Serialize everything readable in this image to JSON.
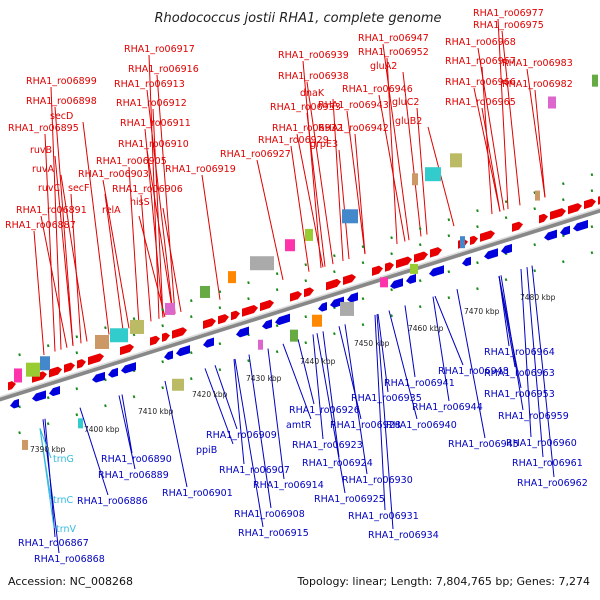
{
  "title": "Rhodococcus jostii RHA1, complete genome",
  "footer": {
    "accession": "Accession: NC_008268",
    "summary": "Topology: linear; Length: 7,804,765 bp; Genes: 7,274"
  },
  "colors": {
    "forward_label": "#e00000",
    "reverse_label": "#0000c0",
    "rna_label": "#33bbdd",
    "forward_gene": "#e80000",
    "reverse_gene": "#0000dd",
    "backbone": "#888888"
  },
  "scale_ticks": [
    "7390 kbp",
    "7400 kbp",
    "7410 kbp",
    "7420 kbp",
    "7430 kbp",
    "7440 kbp",
    "7450 kbp",
    "7460 kbp",
    "7470 kbp",
    "7480 kbp"
  ],
  "top_labels": [
    "RHA1_ro06977",
    "RHA1_ro06975",
    "RHA1_ro06968",
    "RHA1_ro06967",
    "RHA1_ro06983",
    "RHA1_ro06966",
    "RHA1_ro06982",
    "RHA1_ro06965",
    "RHA1_ro06947",
    "RHA1_ro06952",
    "gluA2",
    "RHA1_ro06946",
    "gluC2",
    "RHA1_ro06943",
    "gluB2",
    "RHA1_ro06942",
    "RHA1_ro06939",
    "RHA1_ro06938",
    "dnaK",
    "RHA1_ro06933",
    "RHA1_ro06932",
    "grpE3",
    "RHA1_ro06929",
    "RHA1_ro06927",
    "RHA1_ro06917",
    "RHA1_ro06916",
    "RHA1_ro06913",
    "RHA1_ro06912",
    "RHA1_ro06911",
    "RHA1_ro06910",
    "RHA1_ro06905",
    "RHA1_ro06919",
    "RHA1_ro06903",
    "RHA1_ro06906",
    "hisS",
    "relA",
    "RHA1_ro06899",
    "RHA1_ro06898",
    "secD",
    "RHA1_ro06895",
    "ruvB",
    "ruvA",
    "ruvC",
    "secF",
    "RHA1_ro06891",
    "RHA1_ro06887"
  ],
  "bottom_labels": [
    "RHA1_ro06964",
    "RHA1_ro06963",
    "RHA1_ro06953",
    "RHA1_ro06948",
    "RHA1_ro06941",
    "RHA1_ro06944",
    "RHA1_ro06959",
    "RHA1_ro06940",
    "RHA1_ro06935",
    "RHA1_ro06926",
    "RHA1_ro06928",
    "RHA1_ro06945",
    "RHA1_ro06960",
    "RHA1_ro06961",
    "RHA1_ro06962",
    "amtR",
    "RHA1_ro06923",
    "RHA1_ro06924",
    "RHA1_ro06930",
    "RHA1_ro06925",
    "RHA1_ro06931",
    "RHA1_ro06934",
    "RHA1_ro06909",
    "ppiB",
    "RHA1_ro06907",
    "RHA1_ro06914",
    "RHA1_ro06908",
    "RHA1_ro06915",
    "RHA1_ro06890",
    "RHA1_ro06889",
    "RHA1_ro06901",
    "RHA1_ro06886",
    "RHA1_ro06867",
    "RHA1_ro06868"
  ],
  "rna_labels": [
    "trnG",
    "trnC",
    "trnV"
  ]
}
